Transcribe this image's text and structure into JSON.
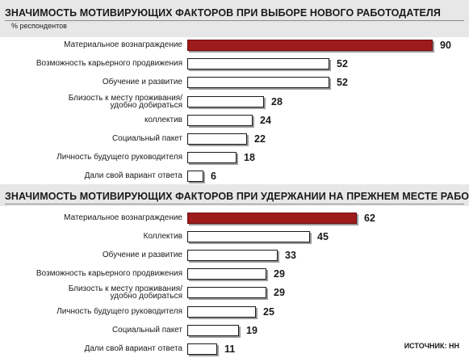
{
  "chart_data": [
    {
      "type": "bar",
      "orientation": "horizontal",
      "title": "ЗНАЧИМОСТЬ МОТИВИРУЮЩИХ ФАКТОРОВ ПРИ ВЫБОРЕ НОВОГО РАБОТОДАТЕЛЯ",
      "unit_label": "% респондентов",
      "categories": [
        "Материальное вознаграждение",
        "Возможность карьерного продвижения",
        "Обучение и развитие",
        "Близость к месту проживания/ удобно добираться",
        "коллектив",
        "Социальный пакет",
        "Личность будущего руководителя",
        "Дали свой вариант ответа"
      ],
      "values": [
        90,
        52,
        52,
        28,
        24,
        22,
        18,
        6
      ],
      "highlight_index": 0,
      "xlim": [
        0,
        100
      ],
      "grid": false
    },
    {
      "type": "bar",
      "orientation": "horizontal",
      "title": "ЗНАЧИМОСТЬ МОТИВИРУЮЩИХ ФАКТОРОВ ПРИ УДЕРЖАНИИ НА ПРЕЖНЕМ МЕСТЕ РАБОТЫ",
      "categories": [
        "Материальное вознаграждение",
        "Коллектив",
        "Обучение и развитие",
        "Возможность карьерного продвижения",
        "Близость к месту проживания/ удобно добираться",
        "Личность будущего руководителя",
        "Социальный пакет",
        "Дали свой вариант ответа"
      ],
      "values": [
        62,
        45,
        33,
        29,
        29,
        25,
        19,
        11
      ],
      "highlight_index": 0,
      "xlim": [
        0,
        100
      ],
      "grid": false
    }
  ],
  "colors": {
    "highlight_bar": "#9e1b1b",
    "bar_fill": "#ffffff",
    "bar_border": "#1a1a1a",
    "header_background": "#e7e7e7"
  },
  "source": "ИСТОЧНИК: HH"
}
